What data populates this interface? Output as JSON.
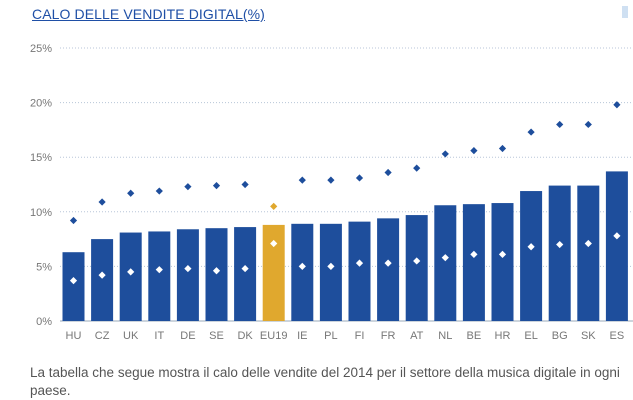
{
  "title": "CALO DELLE VENDITE DIGITAL(%)",
  "caption": "La tabella che segue mostra il calo delle vendite del 2014 per il settore della musica digitale in ogni paese.",
  "colors": {
    "bar": "#1e4e9c",
    "highlight": "#e0a82e",
    "diamond": "#1e4e9c",
    "grid": "#b8c6d8",
    "tick": "#777777"
  },
  "chart_data": {
    "type": "bar",
    "categories": [
      "HU",
      "CZ",
      "UK",
      "IT",
      "DE",
      "SE",
      "DK",
      "EU19",
      "IE",
      "PL",
      "FI",
      "FR",
      "AT",
      "NL",
      "BE",
      "HR",
      "EL",
      "BG",
      "SK",
      "ES"
    ],
    "series": [
      {
        "values": [
          6.3,
          7.5,
          8.1,
          8.2,
          8.4,
          8.5,
          8.6,
          8.8,
          8.9,
          8.9,
          9.1,
          9.4,
          9.7,
          10.6,
          10.7,
          10.8,
          11.9,
          12.4,
          12.4,
          13.7
        ]
      },
      {
        "values": [
          3.7,
          4.2,
          4.5,
          4.7,
          4.8,
          4.6,
          4.8,
          7.1,
          5.0,
          5.0,
          5.3,
          5.3,
          5.5,
          5.8,
          6.1,
          6.1,
          6.8,
          7.0,
          7.1,
          7.8
        ]
      },
      {
        "values": [
          9.2,
          10.9,
          11.7,
          11.9,
          12.3,
          12.4,
          12.5,
          10.5,
          12.9,
          12.9,
          13.1,
          13.6,
          14.0,
          15.3,
          15.6,
          15.8,
          17.3,
          18.0,
          18.0,
          19.8
        ]
      }
    ],
    "highlight_category": "EU19",
    "ylim": [
      0,
      25
    ],
    "yticks": [
      "0%",
      "5%",
      "10%",
      "15%",
      "20%",
      "25%"
    ],
    "grid": true
  }
}
